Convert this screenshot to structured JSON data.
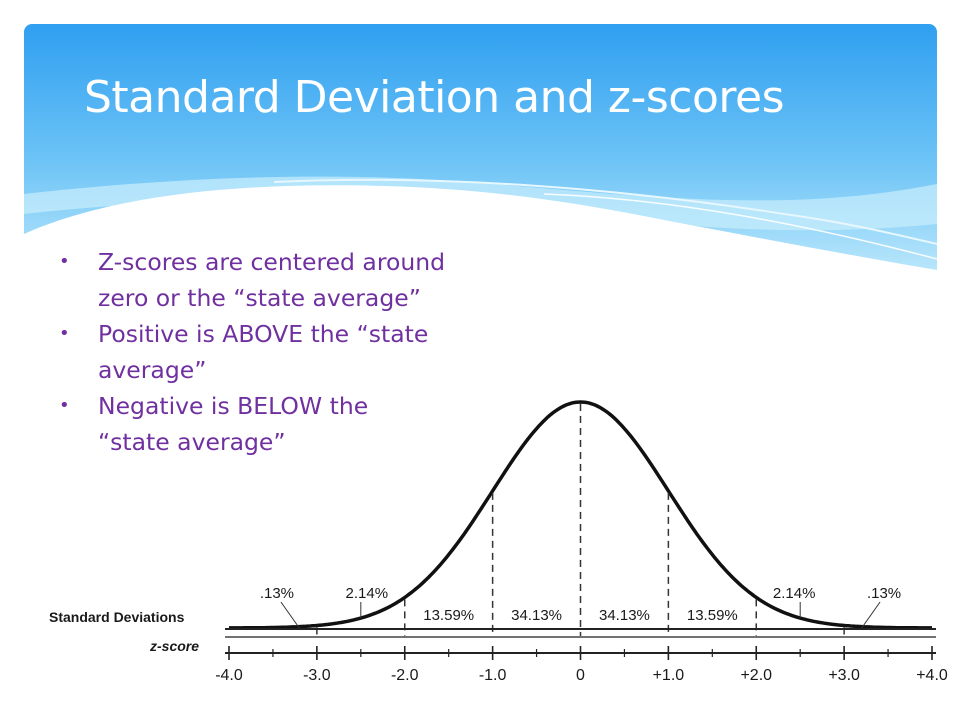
{
  "slide": {
    "title": "Standard Deviation and z-scores",
    "colors": {
      "header_top": "#2f9ff0",
      "header_bottom": "#b8e6fb",
      "bullet_text": "#7030a0"
    },
    "bullets": [
      {
        "text": "Z-scores are centered around",
        "text2": "zero or the “state average”"
      },
      {
        "text": "Positive is ABOVE the “state",
        "text2": "average”"
      },
      {
        "text": "Negative is BELOW the",
        "text2": "“state average”"
      }
    ]
  },
  "chart_data": {
    "type": "area",
    "distribution": "normal",
    "mean": 0,
    "std_dev": 1,
    "xlim": [
      -4.0,
      4.0
    ],
    "row_labels": {
      "top": "Standard Deviations",
      "bottom": "z-score"
    },
    "tick_labels": [
      "-4.0",
      "-3.0",
      "-2.0",
      "-1.0",
      "0",
      "+1.0",
      "+2.0",
      "+3.0",
      "+4.0"
    ],
    "ticks": [
      -4,
      -3,
      -2,
      -1,
      0,
      1,
      2,
      3,
      4
    ],
    "regions": [
      {
        "label": ".13%",
        "from": -4,
        "to": -3,
        "value": 0.13
      },
      {
        "label": "2.14%",
        "from": -3,
        "to": -2,
        "value": 2.14
      },
      {
        "label": "13.59%",
        "from": -2,
        "to": -1,
        "value": 13.59
      },
      {
        "label": "34.13%",
        "from": -1,
        "to": 0,
        "value": 34.13
      },
      {
        "label": "34.13%",
        "from": 0,
        "to": 1,
        "value": 34.13
      },
      {
        "label": "13.59%",
        "from": 1,
        "to": 2,
        "value": 13.59
      },
      {
        "label": "2.14%",
        "from": 2,
        "to": 3,
        "value": 2.14
      },
      {
        "label": ".13%",
        "from": 3,
        "to": 4,
        "value": 0.13
      }
    ]
  }
}
